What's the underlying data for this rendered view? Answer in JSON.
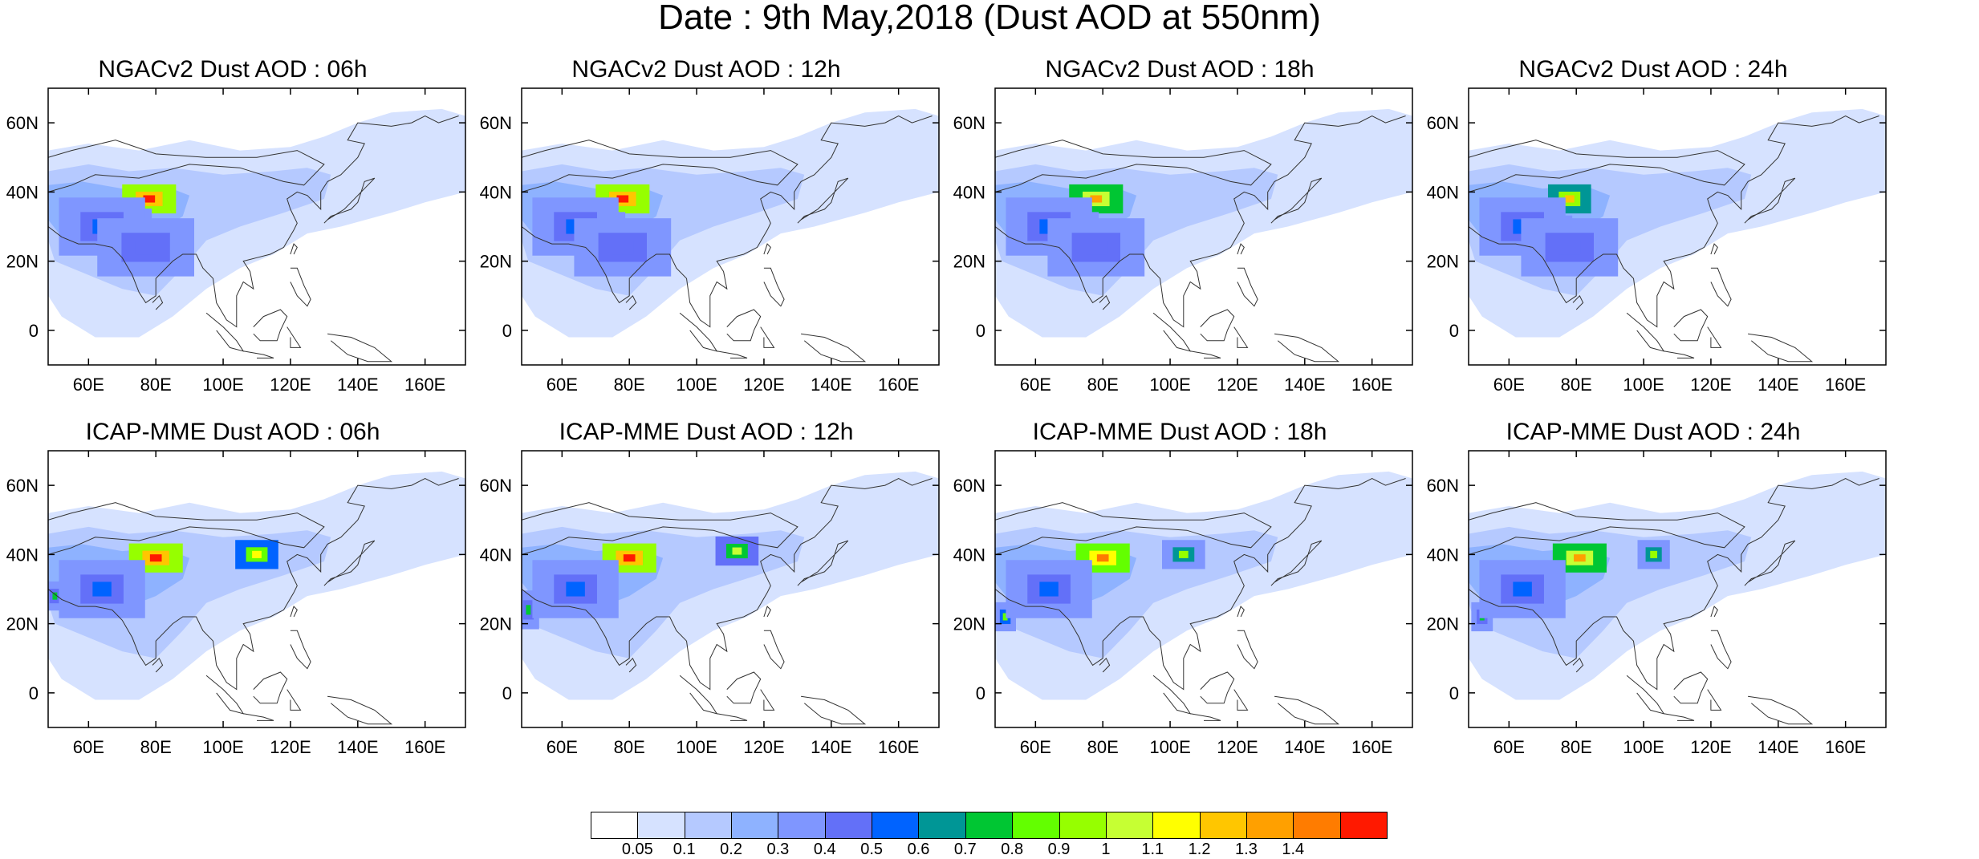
{
  "figure": {
    "title": "Date : 9th May,2018 (Dust AOD at 550nm)"
  },
  "map_axes": {
    "lon_range": [
      48,
      172
    ],
    "lat_range": [
      -10,
      70
    ],
    "lon_ticks": [
      "60E",
      "80E",
      "100E",
      "120E",
      "140E",
      "160E"
    ],
    "lat_ticks": [
      "60N",
      "40N",
      "20N",
      "0"
    ],
    "lon_tick_values": [
      60,
      80,
      100,
      120,
      140,
      160
    ],
    "lat_tick_values": [
      60,
      40,
      20,
      0
    ]
  },
  "panels": [
    {
      "title": "NGACv2 Dust AOD : 06h",
      "model": "NGACv2",
      "hour": "06h"
    },
    {
      "title": "NGACv2 Dust AOD : 12h",
      "model": "NGACv2",
      "hour": "12h"
    },
    {
      "title": "NGACv2 Dust AOD : 18h",
      "model": "NGACv2",
      "hour": "18h"
    },
    {
      "title": "NGACv2 Dust AOD : 24h",
      "model": "NGACv2",
      "hour": "24h"
    },
    {
      "title": "ICAP-MME Dust AOD : 06h",
      "model": "ICAP-MME",
      "hour": "06h"
    },
    {
      "title": "ICAP-MME Dust AOD : 12h",
      "model": "ICAP-MME",
      "hour": "12h"
    },
    {
      "title": "ICAP-MME Dust AOD : 18h",
      "model": "ICAP-MME",
      "hour": "18h"
    },
    {
      "title": "ICAP-MME Dust AOD : 24h",
      "model": "ICAP-MME",
      "hour": "24h"
    }
  ],
  "colorbar": {
    "labels": [
      "0.05",
      "0.1",
      "0.2",
      "0.3",
      "0.4",
      "0.5",
      "0.6",
      "0.7",
      "0.8",
      "0.9",
      "1",
      "1.1",
      "1.2",
      "1.3",
      "1.4"
    ],
    "colors": [
      "#ffffff",
      "#d6e2ff",
      "#b5c9ff",
      "#8eb2ff",
      "#7f96ff",
      "#6370f8",
      "#0063ff",
      "#009696",
      "#00c633",
      "#63ff00",
      "#96ff00",
      "#c6ff33",
      "#ffff00",
      "#ffc600",
      "#ffa000",
      "#ff7c00",
      "#ff1900"
    ]
  }
}
